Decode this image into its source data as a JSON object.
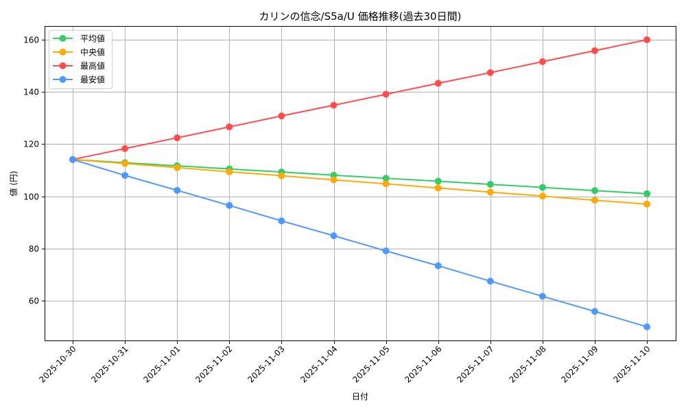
{
  "chart_data": {
    "type": "line",
    "title": "カリンの信念/S5a/U 価格推移(過去30日間)",
    "xlabel": "日付",
    "ylabel": "値 (円)",
    "ylim": [
      45,
      165
    ],
    "yticks": [
      60,
      80,
      100,
      120,
      140,
      160
    ],
    "grid": true,
    "legend_position": "upper left",
    "categories": [
      "2025-10-30",
      "2025-10-31",
      "2025-11-01",
      "2025-11-02",
      "2025-11-03",
      "2025-11-04",
      "2025-11-05",
      "2025-11-06",
      "2025-11-07",
      "2025-11-08",
      "2025-11-09",
      "2025-11-10"
    ],
    "series": [
      {
        "name": "平均値",
        "color": "#33cc66",
        "values": [
          114.1,
          112.9,
          111.7,
          110.5,
          109.3,
          108.1,
          106.9,
          105.8,
          104.6,
          103.4,
          102.2,
          101.0
        ]
      },
      {
        "name": "中央値",
        "color": "#ffaa00",
        "values": [
          114.1,
          112.6,
          111.0,
          109.4,
          107.9,
          106.3,
          104.8,
          103.2,
          101.6,
          100.1,
          98.5,
          97.0
        ]
      },
      {
        "name": "最高値",
        "color": "#ff4d4d",
        "values": [
          114.1,
          118.3,
          122.4,
          126.6,
          130.8,
          134.9,
          139.1,
          143.3,
          147.4,
          151.6,
          155.8,
          160.0
        ]
      },
      {
        "name": "最安値",
        "color": "#4d99ff",
        "values": [
          114.1,
          108.0,
          102.3,
          96.5,
          90.6,
          84.9,
          79.1,
          73.4,
          67.5,
          61.7,
          55.9,
          50.0
        ]
      }
    ]
  }
}
